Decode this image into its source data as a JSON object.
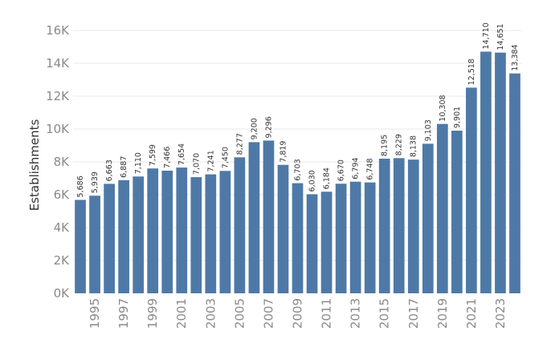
{
  "chart_data": {
    "type": "bar",
    "title": "",
    "xlabel": "",
    "ylabel": "Establishments",
    "categories": [
      "1994",
      "1995",
      "1996",
      "1997",
      "1998",
      "1999",
      "2000",
      "2001",
      "2002",
      "2003",
      "2004",
      "2005",
      "2006",
      "2007",
      "2008",
      "2009",
      "2010",
      "2011",
      "2012",
      "2013",
      "2014",
      "2015",
      "2016",
      "2017",
      "2018",
      "2019",
      "2020",
      "2021",
      "2022",
      "2023",
      "2024"
    ],
    "values": [
      5686,
      5939,
      6663,
      6887,
      7110,
      7599,
      7466,
      7654,
      7070,
      7241,
      7450,
      8277,
      9200,
      9296,
      7819,
      6703,
      6030,
      6184,
      6670,
      6794,
      6748,
      8195,
      8229,
      8138,
      9103,
      10308,
      9901,
      12518,
      14710,
      14651,
      13384
    ],
    "value_labels": [
      "5,686",
      "5,939",
      "6,663",
      "6,887",
      "7,110",
      "7,599",
      "7,466",
      "7,654",
      "7,070",
      "7,241",
      "7,450",
      "8,277",
      "9,200",
      "9,296",
      "7,819",
      "6,703",
      "6,030",
      "6,184",
      "6,670",
      "6,794",
      "6,748",
      "8,195",
      "8,229",
      "8,138",
      "9,103",
      "10,308",
      "9,901",
      "12,518",
      "14,710",
      "14,651",
      "13,384"
    ],
    "x_tick_labels": [
      "1995",
      "1997",
      "1999",
      "2001",
      "2003",
      "2005",
      "2007",
      "2009",
      "2011",
      "2013",
      "2015",
      "2017",
      "2019",
      "2021",
      "2023"
    ],
    "y_ticks": [
      0,
      2000,
      4000,
      6000,
      8000,
      10000,
      12000,
      14000,
      16000
    ],
    "y_tick_labels": [
      "0K",
      "2K",
      "4K",
      "6K",
      "8K",
      "10K",
      "12K",
      "14K",
      "16K"
    ],
    "ylim": [
      0,
      16000
    ],
    "grid": true,
    "legend": "none",
    "bar_color": "#4e79a7"
  }
}
